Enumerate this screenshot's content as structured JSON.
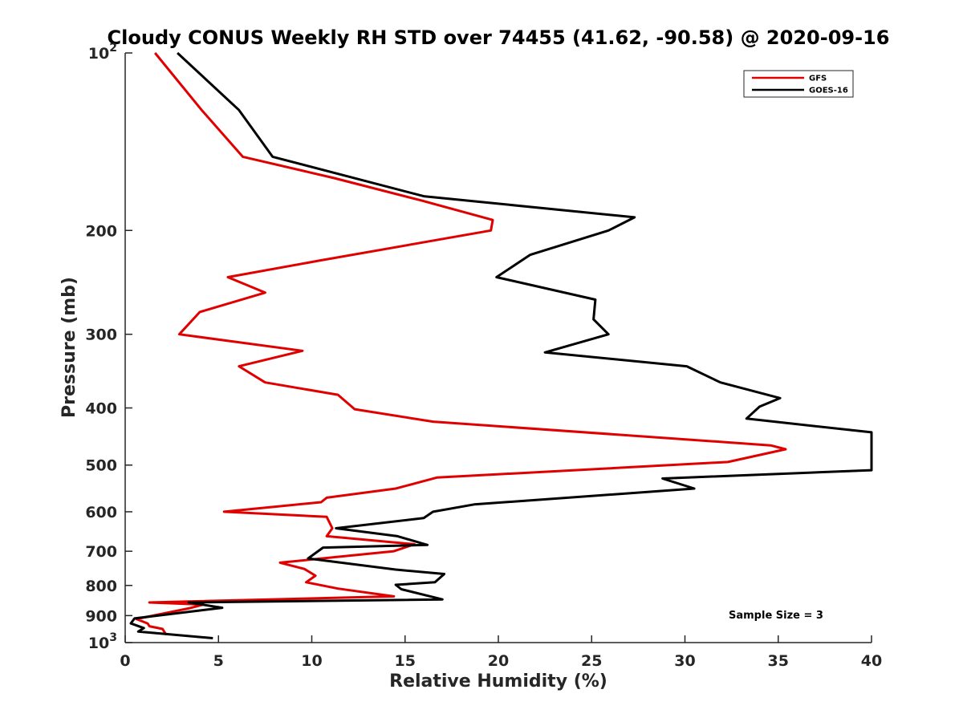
{
  "chart_data": {
    "type": "line",
    "title": "Cloudy CONUS Weekly RH STD over 74455 (41.62, -90.58) @ 2020-09-16",
    "xlabel": "Relative Humidity (%)",
    "ylabel": "Pressure (mb)",
    "xlim": [
      0,
      40
    ],
    "ylim": [
      100,
      1000
    ],
    "yscale": "log",
    "y_reversed": true,
    "grid": false,
    "x_ticks": [
      0,
      5,
      10,
      15,
      20,
      25,
      30,
      35,
      40
    ],
    "y_ticks": [
      {
        "value": 100,
        "label": "10",
        "sup": "2"
      },
      {
        "value": 200,
        "label": "200",
        "sup": ""
      },
      {
        "value": 300,
        "label": "300",
        "sup": ""
      },
      {
        "value": 400,
        "label": "400",
        "sup": ""
      },
      {
        "value": 500,
        "label": "500",
        "sup": ""
      },
      {
        "value": 600,
        "label": "600",
        "sup": ""
      },
      {
        "value": 700,
        "label": "700",
        "sup": ""
      },
      {
        "value": 800,
        "label": "800",
        "sup": ""
      },
      {
        "value": 900,
        "label": "900",
        "sup": ""
      },
      {
        "value": 1000,
        "label": "10",
        "sup": "3"
      }
    ],
    "legend_position": "top-right",
    "annotation": "Sample Size = 3",
    "series": [
      {
        "name": "GFS",
        "color": "#e00000",
        "points": [
          [
            1.6,
            100
          ],
          [
            4.1,
            125
          ],
          [
            6.3,
            150
          ],
          [
            11.2,
            163
          ],
          [
            15.9,
            178
          ],
          [
            19.7,
            192
          ],
          [
            19.6,
            200
          ],
          [
            10.4,
            225
          ],
          [
            5.5,
            240
          ],
          [
            7.5,
            255
          ],
          [
            4.0,
            275
          ],
          [
            2.9,
            300
          ],
          [
            9.5,
            320
          ],
          [
            6.1,
            340
          ],
          [
            7.5,
            362
          ],
          [
            11.4,
            380
          ],
          [
            12.3,
            402
          ],
          [
            16.5,
            422
          ],
          [
            34.6,
            463
          ],
          [
            35.4,
            470
          ],
          [
            32.3,
            494
          ],
          [
            16.7,
            525
          ],
          [
            14.5,
            548
          ],
          [
            10.8,
            568
          ],
          [
            10.5,
            578
          ],
          [
            5.3,
            600
          ],
          [
            10.8,
            612
          ],
          [
            11.1,
            640
          ],
          [
            10.8,
            660
          ],
          [
            15.5,
            681
          ],
          [
            14.4,
            700
          ],
          [
            8.3,
            732
          ],
          [
            9.6,
            750
          ],
          [
            10.2,
            770
          ],
          [
            9.7,
            790
          ],
          [
            11.4,
            810
          ],
          [
            14.4,
            835
          ],
          [
            1.3,
            855
          ],
          [
            4.2,
            862
          ],
          [
            3.4,
            875
          ],
          [
            0.6,
            912
          ],
          [
            1.2,
            928
          ],
          [
            1.3,
            938
          ],
          [
            2.0,
            948
          ],
          [
            2.2,
            970
          ]
        ]
      },
      {
        "name": "GOES-16",
        "color": "#000000",
        "points": [
          [
            2.8,
            100
          ],
          [
            6.1,
            125
          ],
          [
            7.9,
            150
          ],
          [
            16.0,
            175
          ],
          [
            27.3,
            190
          ],
          [
            25.9,
            200
          ],
          [
            21.7,
            220
          ],
          [
            19.9,
            240
          ],
          [
            25.2,
            262
          ],
          [
            25.1,
            283
          ],
          [
            25.9,
            300
          ],
          [
            22.5,
            322
          ],
          [
            30.1,
            340
          ],
          [
            31.9,
            362
          ],
          [
            35.1,
            385
          ],
          [
            34.0,
            398
          ],
          [
            33.3,
            417
          ],
          [
            40.0,
            440
          ],
          [
            40.0,
            510
          ],
          [
            28.8,
            527
          ],
          [
            30.5,
            548
          ],
          [
            18.7,
            583
          ],
          [
            16.5,
            600
          ],
          [
            16.0,
            615
          ],
          [
            11.3,
            640
          ],
          [
            14.6,
            660
          ],
          [
            16.2,
            683
          ],
          [
            10.6,
            690
          ],
          [
            9.8,
            720
          ],
          [
            14.5,
            752
          ],
          [
            17.1,
            765
          ],
          [
            16.6,
            790
          ],
          [
            14.5,
            798
          ],
          [
            14.8,
            812
          ],
          [
            17.0,
            845
          ],
          [
            3.4,
            855
          ],
          [
            5.2,
            873
          ],
          [
            0.5,
            910
          ],
          [
            0.3,
            928
          ],
          [
            1.0,
            945
          ],
          [
            0.7,
            958
          ],
          [
            4.7,
            983
          ]
        ]
      }
    ]
  }
}
